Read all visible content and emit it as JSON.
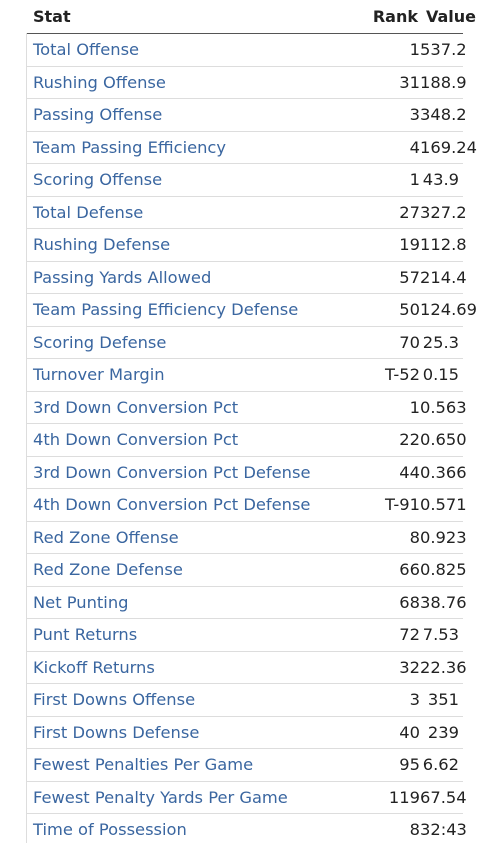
{
  "table": {
    "headers": {
      "stat": "Stat",
      "rank": "Rank",
      "value": "Value"
    },
    "rows": [
      {
        "stat": "Total Offense",
        "rank": "1",
        "value": "537.2"
      },
      {
        "stat": "Rushing Offense",
        "rank": "31",
        "value": "188.9"
      },
      {
        "stat": "Passing Offense",
        "rank": "3",
        "value": "348.2"
      },
      {
        "stat": "Team Passing Efficiency",
        "rank": "4",
        "value": "169.24"
      },
      {
        "stat": "Scoring Offense",
        "rank": "1",
        "value": "43.9"
      },
      {
        "stat": "Total Defense",
        "rank": "27",
        "value": "327.2"
      },
      {
        "stat": "Rushing Defense",
        "rank": "19",
        "value": "112.8"
      },
      {
        "stat": "Passing Yards Allowed",
        "rank": "57",
        "value": "214.4"
      },
      {
        "stat": "Team Passing Efficiency Defense",
        "rank": "50",
        "value": "124.69"
      },
      {
        "stat": "Scoring Defense",
        "rank": "70",
        "value": "25.3"
      },
      {
        "stat": "Turnover Margin",
        "rank": "T-52",
        "value": "0.15"
      },
      {
        "stat": "3rd Down Conversion Pct",
        "rank": "1",
        "value": "0.563"
      },
      {
        "stat": "4th Down Conversion Pct",
        "rank": "22",
        "value": "0.650"
      },
      {
        "stat": "3rd Down Conversion Pct Defense",
        "rank": "44",
        "value": "0.366"
      },
      {
        "stat": "4th Down Conversion Pct Defense",
        "rank": "T-91",
        "value": "0.571"
      },
      {
        "stat": "Red Zone Offense",
        "rank": "8",
        "value": "0.923"
      },
      {
        "stat": "Red Zone Defense",
        "rank": "66",
        "value": "0.825"
      },
      {
        "stat": "Net Punting",
        "rank": "68",
        "value": "38.76"
      },
      {
        "stat": "Punt Returns",
        "rank": "72",
        "value": "7.53"
      },
      {
        "stat": "Kickoff Returns",
        "rank": "32",
        "value": "22.36"
      },
      {
        "stat": "First Downs Offense",
        "rank": "3",
        "value": "351"
      },
      {
        "stat": "First Downs Defense",
        "rank": "40",
        "value": "239"
      },
      {
        "stat": "Fewest Penalties Per Game",
        "rank": "95",
        "value": "6.62"
      },
      {
        "stat": "Fewest Penalty Yards Per Game",
        "rank": "119",
        "value": "67.54"
      },
      {
        "stat": "Time of Possession",
        "rank": "8",
        "value": "32:43"
      }
    ]
  },
  "colors": {
    "link": "#3a66a0",
    "text": "#222222",
    "rule": "#dddddd"
  }
}
